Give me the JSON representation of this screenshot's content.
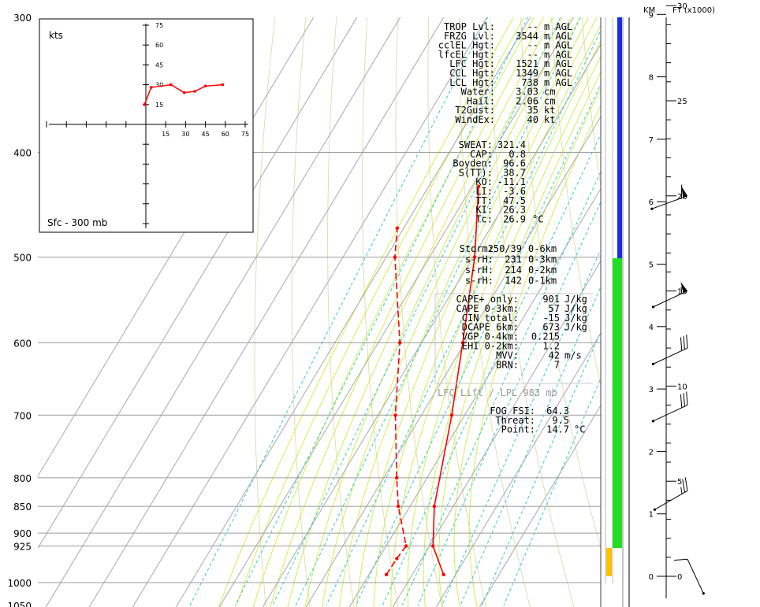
{
  "chart_data": [
    {
      "type": "line",
      "subtype": "skew-t log-p sounding",
      "y_axis": {
        "label": "",
        "scale": "log",
        "ylim": [
          1050,
          300
        ],
        "ticks": [
          "300",
          "400",
          "500",
          "600",
          "700",
          "800",
          "850",
          "900",
          "925",
          "1000",
          "1050"
        ]
      },
      "series": [
        {
          "name": "",
          "color": "#ff0000",
          "style": "solid",
          "points": [
            {
              "p": 983,
              "t": 27.2
            },
            {
              "p": 925,
              "t": 20.8
            },
            {
              "p": 850,
              "t": 15.6
            },
            {
              "p": 700,
              "t": 7.0
            },
            {
              "p": 600,
              "t": -0.5
            },
            {
              "p": 500,
              "t": -9.6
            },
            {
              "p": 430,
              "t": -18.5
            }
          ]
        },
        {
          "name": "",
          "color": "#ff0000",
          "style": "dashed",
          "points": [
            {
              "p": 983,
              "t": 14.0
            },
            {
              "p": 950,
              "t": 14.2
            },
            {
              "p": 925,
              "t": 14.6
            },
            {
              "p": 850,
              "t": 7.3
            },
            {
              "p": 800,
              "t": 3.0
            },
            {
              "p": 700,
              "t": -6.0
            },
            {
              "p": 600,
              "t": -15.0
            },
            {
              "p": 500,
              "t": -28.0
            },
            {
              "p": 470,
              "t": -31.5
            }
          ]
        }
      ]
    },
    {
      "type": "line",
      "subtype": "hodograph",
      "title": "kts",
      "caption": "Sfc - 300 mb",
      "x_ticks": [
        "15",
        "30",
        "45",
        "60",
        "75"
      ],
      "y_ticks": [
        "75",
        "60",
        "45",
        "30",
        "15"
      ],
      "series": [
        {
          "name": "",
          "color": "#ff0000",
          "points": [
            [
              -1,
              15
            ],
            [
              4,
              28
            ],
            [
              19,
              30
            ],
            [
              29,
              24
            ],
            [
              37,
              25
            ],
            [
              45,
              29
            ],
            [
              58,
              30
            ]
          ]
        }
      ]
    },
    {
      "type": "table",
      "name": "wind profile",
      "left_axis": {
        "label": "KM",
        "ticks": [
          "9",
          "8",
          "7",
          "6",
          "5",
          "4",
          "3",
          "2",
          "1",
          "0"
        ]
      },
      "right_axis": {
        "label": "FT (x1000)",
        "ticks": [
          "30",
          "25",
          "20",
          "15",
          "10",
          "5",
          "0"
        ]
      },
      "levels": [
        {
          "kft": 0.9,
          "dir": 155,
          "kt": 10
        },
        {
          "kft": 4.5,
          "dir": 240,
          "kt": 25
        },
        {
          "kft": 9.0,
          "dir": 245,
          "kt": 30
        },
        {
          "kft": 12.0,
          "dir": 245,
          "kt": 30
        },
        {
          "kft": 15.0,
          "dir": 245,
          "kt": 55
        },
        {
          "kft": 20.0,
          "dir": 250,
          "kt": 60
        }
      ]
    }
  ],
  "indices": {
    "block1": [
      {
        "label": "TROP Lvl:",
        "value": "--",
        "unit": "m AGL"
      },
      {
        "label": "FRZG Lvl:",
        "value": "3544",
        "unit": "m AGL"
      },
      {
        "label": "cclEL Hgt:",
        "value": "--",
        "unit": "m AGL"
      },
      {
        "label": "lfcEL Hgt:",
        "value": "--",
        "unit": "m AGL"
      },
      {
        "label": "LFC Hgt:",
        "value": "1521",
        "unit": "m AGL"
      },
      {
        "label": "CCL Hgt:",
        "value": "1349",
        "unit": "m AGL"
      },
      {
        "label": "LCL Hgt:",
        "value": "738",
        "unit": "m AGL"
      },
      {
        "label": "Water:",
        "value": "3.03",
        "unit": "cm"
      },
      {
        "label": "Hail:",
        "value": "2.06",
        "unit": "cm"
      },
      {
        "label": "T2Gust:",
        "value": "35",
        "unit": "kt"
      },
      {
        "label": "WindEx:",
        "value": "40",
        "unit": "kt"
      }
    ],
    "block2": [
      {
        "label": "SWEAT:",
        "value": "321.4",
        "unit": ""
      },
      {
        "label": "CAP:",
        "value": "0.8",
        "unit": ""
      },
      {
        "label": "Boyden:",
        "value": "96.6",
        "unit": ""
      },
      {
        "label": "S(TT):",
        "value": "38.7",
        "unit": ""
      },
      {
        "label": "KO:",
        "value": "-11.1",
        "unit": ""
      },
      {
        "label": "LI:",
        "value": "-3.6",
        "unit": ""
      },
      {
        "label": "TT:",
        "value": "47.5",
        "unit": ""
      },
      {
        "label": "KI:",
        "value": "26.3",
        "unit": ""
      },
      {
        "label": "Tc:",
        "value": "26.9",
        "unit": "°C"
      }
    ],
    "block3": [
      {
        "label": "Storm:",
        "value": "250/39",
        "unit": "0-6km"
      },
      {
        "label": "s-rH:",
        "value": "231",
        "unit": "0-3km"
      },
      {
        "label": "s-rH:",
        "value": "214",
        "unit": "0-2km"
      },
      {
        "label": "s-rH:",
        "value": "142",
        "unit": "0-1km"
      }
    ],
    "block4": [
      {
        "label": "CAPE+ only:",
        "value": "901",
        "unit": "J/kg"
      },
      {
        "label": "CAPE 0-3km:",
        "value": "57",
        "unit": "J/kg"
      },
      {
        "label": "CIN total:",
        "value": "-15",
        "unit": "J/kg"
      },
      {
        "label": "DCAPE 6km:",
        "value": "673",
        "unit": "J/kg"
      },
      {
        "label": "VGP 0-4km:",
        "value": "0.215",
        "unit": ""
      },
      {
        "label": "EHI 0-2km:",
        "value": "1.2",
        "unit": ""
      },
      {
        "label": "MVV:",
        "value": "42",
        "unit": "m/s"
      },
      {
        "label": "BRN:",
        "value": "7",
        "unit": ""
      }
    ],
    "lift_note": "LFC Lift / LPL 983 mb",
    "block5": [
      {
        "label": "FOG FSI:",
        "value": "64.3",
        "unit": ""
      },
      {
        "label": "Threat:",
        "value": "9.5",
        "unit": ""
      },
      {
        "label": "Point:",
        "value": "14.7",
        "unit": "°C"
      }
    ]
  },
  "colors": {
    "profile": "#ff0000",
    "isobar": "#9b9b9b",
    "isotherm": "#a8a8a8",
    "mixing_ratio": "#33cccc",
    "moist_adiabat": "#ccee44",
    "dry_adiabat": "#d8d8a0",
    "column_blue": "#1a2ee0",
    "column_green": "#22dd22",
    "column_yellow": "#ffc000"
  }
}
